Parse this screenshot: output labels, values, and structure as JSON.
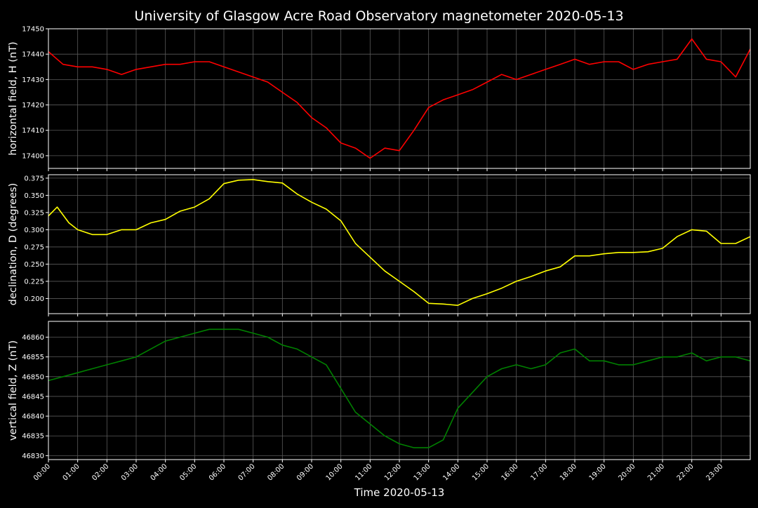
{
  "title": "University of Glasgow Acre Road Observatory magnetometer 2020-05-13",
  "xlabel": "Time 2020-05-13",
  "colors": {
    "background": "#000000",
    "frame": "#ffffff",
    "grid": "#5a5a5a",
    "text": "#ffffff"
  },
  "time_ticks": [
    "00:00",
    "01:00",
    "02:00",
    "03:00",
    "04:00",
    "05:00",
    "06:00",
    "07:00",
    "08:00",
    "09:00",
    "10:00",
    "11:00",
    "12:00",
    "13:00",
    "14:00",
    "15:00",
    "16:00",
    "17:00",
    "18:00",
    "19:00",
    "20:00",
    "21:00",
    "22:00",
    "23:00"
  ],
  "chart_data": [
    {
      "type": "line",
      "ylabel": "horizontal field, H (nT)",
      "ylim": [
        17395,
        17450
      ],
      "yticks": [
        17400,
        17410,
        17420,
        17430,
        17440,
        17450
      ],
      "ytick_decimals": 0,
      "grid": true,
      "color": "#ff0000",
      "x": [
        0,
        0.5,
        1,
        1.5,
        2,
        2.5,
        3,
        3.5,
        4,
        4.5,
        5,
        5.5,
        6,
        6.5,
        7,
        7.5,
        8,
        8.5,
        9,
        9.5,
        10,
        10.5,
        11,
        11.5,
        12,
        12.5,
        13,
        13.5,
        14,
        14.5,
        15,
        15.5,
        16,
        16.5,
        17,
        17.5,
        18,
        18.5,
        19,
        19.5,
        20,
        20.5,
        21,
        21.5,
        22,
        22.5,
        23,
        23.5,
        24
      ],
      "y": [
        17441,
        17436,
        17435,
        17435,
        17434,
        17432,
        17434,
        17435,
        17436,
        17436,
        17437,
        17437,
        17435,
        17433,
        17431,
        17429,
        17425,
        17421,
        17415,
        17411,
        17405,
        17403,
        17399,
        17403,
        17402,
        17410,
        17419,
        17422,
        17424,
        17426,
        17429,
        17432,
        17430,
        17432,
        17434,
        17436,
        17438,
        17436,
        17437,
        17437,
        17434,
        17436,
        17437,
        17438,
        17446,
        17438,
        17437,
        17431,
        17442
      ]
    },
    {
      "type": "line",
      "ylabel": "declination, D (degrees)",
      "ylim": [
        0.178,
        0.38
      ],
      "yticks": [
        0.2,
        0.225,
        0.25,
        0.275,
        0.3,
        0.325,
        0.35,
        0.375
      ],
      "ytick_decimals": 3,
      "grid": true,
      "color": "#ffff00",
      "x": [
        0,
        0.3,
        0.7,
        1,
        1.5,
        2,
        2.5,
        3,
        3.5,
        4,
        4.5,
        5,
        5.5,
        6,
        6.5,
        7,
        7.5,
        8,
        8.5,
        9,
        9.5,
        10,
        10.5,
        11,
        11.5,
        12,
        12.5,
        13,
        13.5,
        14,
        14.5,
        15,
        15.5,
        16,
        16.5,
        17,
        17.5,
        18,
        18.5,
        19,
        19.5,
        20,
        20.5,
        21,
        21.5,
        22,
        22.5,
        23,
        23.5,
        24
      ],
      "y": [
        0.32,
        0.333,
        0.31,
        0.3,
        0.293,
        0.293,
        0.3,
        0.3,
        0.31,
        0.315,
        0.327,
        0.333,
        0.345,
        0.367,
        0.372,
        0.373,
        0.37,
        0.368,
        0.352,
        0.34,
        0.33,
        0.313,
        0.28,
        0.26,
        0.24,
        0.225,
        0.21,
        0.193,
        0.192,
        0.19,
        0.2,
        0.207,
        0.215,
        0.225,
        0.232,
        0.24,
        0.246,
        0.262,
        0.262,
        0.265,
        0.267,
        0.267,
        0.268,
        0.273,
        0.29,
        0.3,
        0.298,
        0.28,
        0.28,
        0.29
      ]
    },
    {
      "type": "line",
      "ylabel": "vertical field, Z (nT)",
      "ylim": [
        46829,
        46864
      ],
      "yticks": [
        46830,
        46835,
        46840,
        46845,
        46850,
        46855,
        46860
      ],
      "ytick_decimals": 0,
      "grid": true,
      "color": "#008000",
      "x": [
        0,
        0.5,
        1,
        1.5,
        2,
        2.5,
        3,
        3.5,
        4,
        4.5,
        5,
        5.5,
        6,
        6.5,
        7,
        7.5,
        8,
        8.5,
        9,
        9.5,
        10,
        10.5,
        11,
        11.5,
        12,
        12.5,
        13,
        13.5,
        14,
        14.5,
        15,
        15.5,
        16,
        16.5,
        17,
        17.5,
        18,
        18.5,
        19,
        19.5,
        20,
        20.5,
        21,
        21.5,
        22,
        22.5,
        23,
        23.5,
        24
      ],
      "y": [
        46849,
        46850,
        46851,
        46852,
        46853,
        46854,
        46855,
        46857,
        46859,
        46860,
        46861,
        46862,
        46862,
        46862,
        46861,
        46860,
        46858,
        46857,
        46855,
        46853,
        46847,
        46841,
        46838,
        46835,
        46833,
        46832,
        46832,
        46834,
        46842,
        46846,
        46850,
        46852,
        46853,
        46852,
        46853,
        46856,
        46857,
        46854,
        46854,
        46853,
        46853,
        46854,
        46855,
        46855,
        46856,
        46854,
        46855,
        46855,
        46854
      ]
    }
  ]
}
